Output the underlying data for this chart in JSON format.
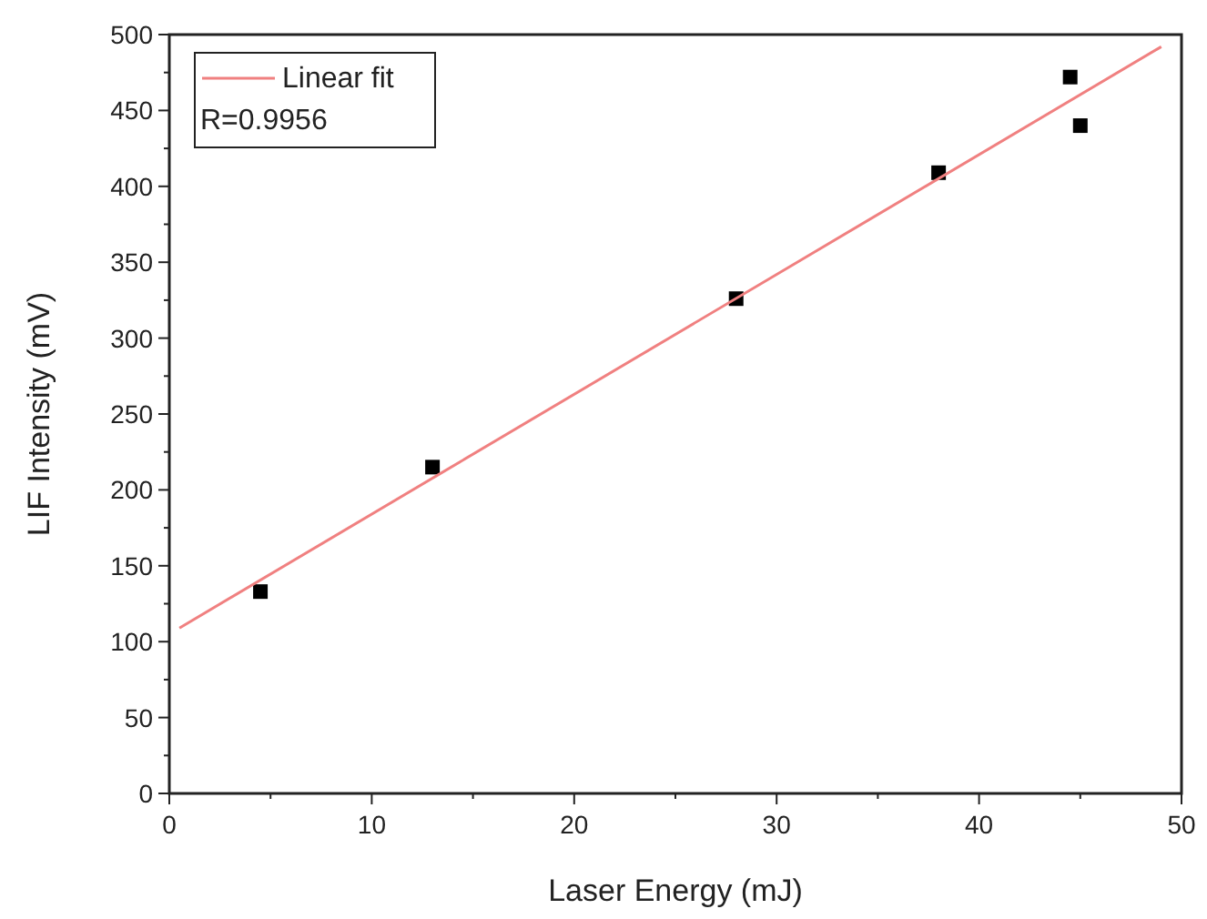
{
  "chart_data": {
    "type": "scatter",
    "xlabel": "Laser Energy  (mJ)",
    "ylabel": "LIF Intensity (mV)",
    "series": [
      {
        "type": "scatter",
        "color": "#000000",
        "marker": "square",
        "x": [
          4.5,
          13,
          28,
          38,
          44.5,
          45
        ],
        "values": [
          133,
          215,
          326,
          409,
          472,
          440
        ]
      },
      {
        "type": "line",
        "name": "Linear fit",
        "color": "#f08080",
        "marker": "none",
        "line_style": "solid",
        "x": [
          0.5,
          49
        ],
        "values": [
          109,
          492
        ]
      }
    ],
    "annotations": [
      "R=0.9956"
    ],
    "legend": "top left",
    "grid": false,
    "xlim": [
      0,
      50
    ],
    "xticks": [
      0,
      {
        "value": 5,
        "label": null
      },
      10,
      {
        "value": 15,
        "label": null
      },
      20,
      {
        "value": 25,
        "label": null
      },
      30,
      {
        "value": 35,
        "label": null
      },
      40,
      {
        "value": 45,
        "label": null
      },
      50
    ],
    "ylim": [
      0,
      500
    ],
    "yticks": [
      0,
      {
        "value": 25,
        "label": null
      },
      50,
      {
        "value": 75,
        "label": null
      },
      100,
      {
        "value": 125,
        "label": null
      },
      150,
      {
        "value": 175,
        "label": null
      },
      200,
      {
        "value": 225,
        "label": null
      },
      250,
      {
        "value": 275,
        "label": null
      },
      300,
      {
        "value": 325,
        "label": null
      },
      350,
      {
        "value": 375,
        "label": null
      },
      400,
      {
        "value": 425,
        "label": null
      },
      450,
      {
        "value": 475,
        "label": null
      },
      500
    ]
  }
}
